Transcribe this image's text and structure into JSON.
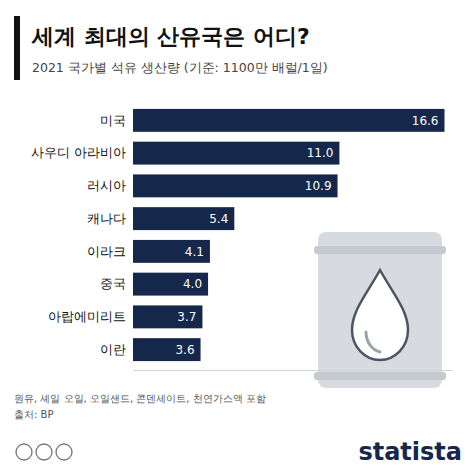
{
  "chart_data": {
    "type": "bar",
    "orientation": "horizontal",
    "title": "세계 최대의 산유국은 어디?",
    "subtitle": "2021 국가별 석유 생산량 (기준: 1100만 배럴/1일)",
    "categories": [
      "미국",
      "사우디 아라비아",
      "러시아",
      "캐나다",
      "이라크",
      "중국",
      "아랍에미리트",
      "이란"
    ],
    "values": [
      16.6,
      11.0,
      10.9,
      5.4,
      4.1,
      4.0,
      3.7,
      3.6
    ],
    "value_labels": [
      "16.6",
      "11.0",
      "10.9",
      "5.4",
      "4.1",
      "4.0",
      "3.7",
      "3.6"
    ],
    "color": "#15284b",
    "xlim": [
      0,
      17
    ],
    "data_labels": true,
    "tick_labels": "y",
    "grid": false,
    "annotations": [
      "원유, 셰일 오일, 오일샌드, 콘덴세이트, 천연가스액 포함",
      "출처: BP",
      "statista"
    ]
  }
}
